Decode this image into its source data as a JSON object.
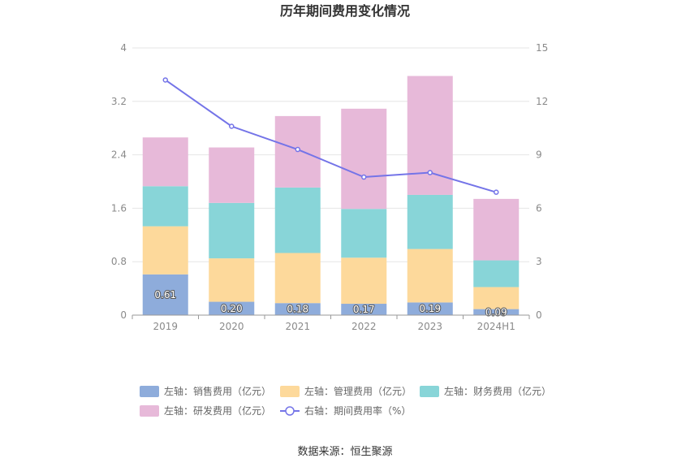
{
  "colors": {
    "sales": "#8eacdb",
    "management": "#fdd99b",
    "finance": "#88d5d8",
    "rd": "#e7b9d9",
    "rate": "#7474e8",
    "grid": "#e6e6e6",
    "axis": "#999999"
  },
  "chart_data": {
    "type": "bar",
    "stacked": true,
    "title": "历年期间费用变化情况",
    "categories": [
      "2019",
      "2020",
      "2021",
      "2022",
      "2023",
      "2024H1"
    ],
    "y_left": {
      "ylim": [
        0,
        4
      ],
      "ticks": [
        "0",
        "0.8",
        "1.6",
        "2.4",
        "3.2",
        "4"
      ]
    },
    "y_right": {
      "ylim": [
        0,
        15
      ],
      "ticks": [
        "0",
        "3",
        "6",
        "9",
        "12",
        "15"
      ]
    },
    "series": [
      {
        "name": "左轴：销售费用（亿元）",
        "axis": "left",
        "kind": "bar",
        "color_key": "sales",
        "values": [
          0.61,
          0.2,
          0.18,
          0.17,
          0.19,
          0.09
        ],
        "labels": [
          "0.61",
          "0.20",
          "0.18",
          "0.17",
          "0.19",
          "0.09"
        ]
      },
      {
        "name": "左轴：管理费用（亿元）",
        "axis": "left",
        "kind": "bar",
        "color_key": "management",
        "values": [
          0.72,
          0.65,
          0.75,
          0.69,
          0.8,
          0.33
        ]
      },
      {
        "name": "左轴：财务费用（亿元）",
        "axis": "left",
        "kind": "bar",
        "color_key": "finance",
        "values": [
          0.6,
          0.83,
          0.98,
          0.73,
          0.81,
          0.4
        ]
      },
      {
        "name": "左轴：研发费用（亿元）",
        "axis": "left",
        "kind": "bar",
        "color_key": "rd",
        "values": [
          0.73,
          0.83,
          1.07,
          1.5,
          1.78,
          0.92
        ]
      },
      {
        "name": "右轴：期间费用率（%）",
        "axis": "right",
        "kind": "line",
        "color_key": "rate",
        "values": [
          13.2,
          10.6,
          9.3,
          7.75,
          8.0,
          6.9
        ]
      }
    ],
    "legend_position": "bottom",
    "grid": true
  },
  "footer": {
    "source": "数据来源：恒生聚源"
  }
}
